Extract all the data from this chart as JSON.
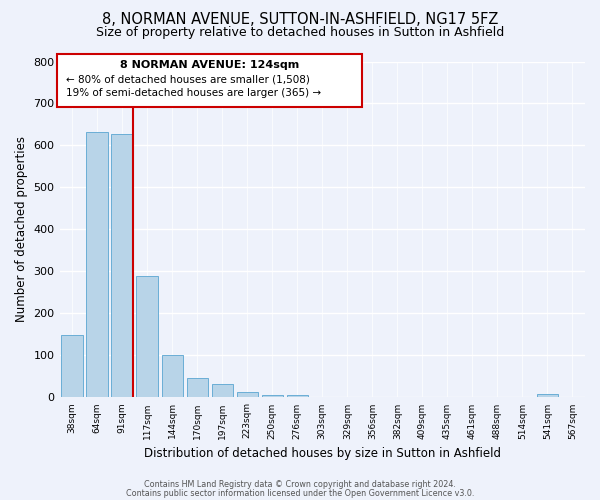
{
  "title": "8, NORMAN AVENUE, SUTTON-IN-ASHFIELD, NG17 5FZ",
  "subtitle": "Size of property relative to detached houses in Sutton in Ashfield",
  "xlabel": "Distribution of detached houses by size in Sutton in Ashfield",
  "ylabel": "Number of detached properties",
  "bin_labels": [
    "38sqm",
    "64sqm",
    "91sqm",
    "117sqm",
    "144sqm",
    "170sqm",
    "197sqm",
    "223sqm",
    "250sqm",
    "276sqm",
    "303sqm",
    "329sqm",
    "356sqm",
    "382sqm",
    "409sqm",
    "435sqm",
    "461sqm",
    "488sqm",
    "514sqm",
    "541sqm",
    "567sqm"
  ],
  "bar_values": [
    148,
    633,
    628,
    290,
    101,
    46,
    32,
    13,
    5,
    5,
    0,
    0,
    0,
    0,
    0,
    0,
    0,
    0,
    0,
    7,
    0
  ],
  "bar_color": "#b8d4e8",
  "bar_edge_color": "#6aaed6",
  "vline_color": "#cc0000",
  "annotation_title": "8 NORMAN AVENUE: 124sqm",
  "annotation_line1": "← 80% of detached houses are smaller (1,508)",
  "annotation_line2": "19% of semi-detached houses are larger (365) →",
  "annotation_box_edgecolor": "#cc0000",
  "annotation_box_facecolor": "#ffffff",
  "ylim": [
    0,
    800
  ],
  "yticks": [
    0,
    100,
    200,
    300,
    400,
    500,
    600,
    700,
    800
  ],
  "footer1": "Contains HM Land Registry data © Crown copyright and database right 2024.",
  "footer2": "Contains public sector information licensed under the Open Government Licence v3.0.",
  "bg_color": "#eef2fb",
  "title_fontsize": 10.5,
  "subtitle_fontsize": 9.0,
  "xlabel_fontsize": 8.5,
  "ylabel_fontsize": 8.5
}
